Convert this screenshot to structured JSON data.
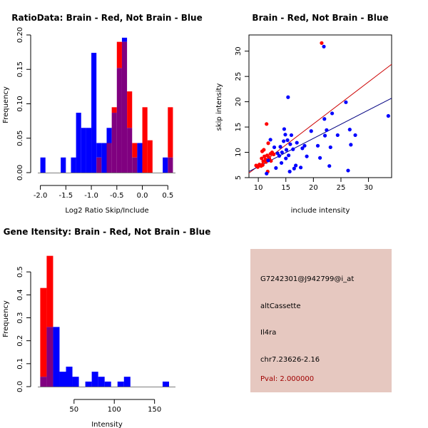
{
  "colors": {
    "red": "#ff0000",
    "blue": "#0000ff",
    "overlap": "#800080",
    "fit_red": "#cc0000",
    "fit_blue": "#000080",
    "panel_bg": "#e6c8c0",
    "pval": "#a00000"
  },
  "chart_data": [
    {
      "type": "histogram",
      "title": "RatioData: Brain - Red, Not Brain - Blue",
      "xlabel": "Log2 Ratio Skip/Include",
      "ylabel": "Frequency",
      "xlim": [
        -2.05,
        0.65
      ],
      "ylim": [
        0,
        0.2
      ],
      "xticks": [
        -2.0,
        -1.5,
        -1.0,
        -0.5,
        0.0,
        0.5
      ],
      "xtick_labels": [
        "-2.0",
        "-1.5",
        "-1.0",
        "-0.5",
        "0.0",
        "0.5"
      ],
      "yticks": [
        0,
        0.05,
        0.1,
        0.15,
        0.2
      ],
      "ytick_labels": [
        "0.00",
        "0.05",
        "0.10",
        "0.15",
        "0.20"
      ],
      "bin_width": 0.1,
      "series": [
        {
          "name": "Brain",
          "color": "red",
          "bins": [
            {
              "x0": -0.9,
              "y": 0.022
            },
            {
              "x0": -0.7,
              "y": 0.043
            },
            {
              "x0": -0.6,
              "y": 0.095
            },
            {
              "x0": -0.5,
              "y": 0.19
            },
            {
              "x0": -0.4,
              "y": 0.19
            },
            {
              "x0": -0.3,
              "y": 0.118
            },
            {
              "x0": -0.2,
              "y": 0.043
            },
            {
              "x0": 0.0,
              "y": 0.095
            },
            {
              "x0": 0.1,
              "y": 0.047
            },
            {
              "x0": 0.5,
              "y": 0.095
            }
          ]
        },
        {
          "name": "Not Brain",
          "color": "blue",
          "bins": [
            {
              "x0": -2.0,
              "y": 0.022
            },
            {
              "x0": -1.6,
              "y": 0.022
            },
            {
              "x0": -1.4,
              "y": 0.022
            },
            {
              "x0": -1.3,
              "y": 0.087
            },
            {
              "x0": -1.2,
              "y": 0.065
            },
            {
              "x0": -1.1,
              "y": 0.065
            },
            {
              "x0": -1.0,
              "y": 0.174
            },
            {
              "x0": -0.9,
              "y": 0.043
            },
            {
              "x0": -0.8,
              "y": 0.043
            },
            {
              "x0": -0.7,
              "y": 0.065
            },
            {
              "x0": -0.6,
              "y": 0.087
            },
            {
              "x0": -0.5,
              "y": 0.152
            },
            {
              "x0": -0.4,
              "y": 0.196
            },
            {
              "x0": -0.3,
              "y": 0.065
            },
            {
              "x0": -0.2,
              "y": 0.022
            },
            {
              "x0": -0.1,
              "y": 0.043
            },
            {
              "x0": 0.4,
              "y": 0.022
            },
            {
              "x0": 0.5,
              "y": 0.022
            }
          ]
        }
      ]
    },
    {
      "type": "scatter",
      "title": "Brain - Red, Not Brain - Blue",
      "xlabel": "include intensity",
      "ylabel": "skip intensity",
      "xlim": [
        8.3,
        34.2
      ],
      "ylim": [
        5,
        33.2
      ],
      "xticks": [
        10,
        15,
        20,
        25,
        30
      ],
      "yticks": [
        5,
        10,
        15,
        20,
        25,
        30
      ],
      "fit_lines": [
        {
          "name": "Brain fit",
          "color": "fit_red",
          "from": [
            8.3,
            5.9
          ],
          "to": [
            34.2,
            27.4
          ]
        },
        {
          "name": "Not Brain fit",
          "color": "fit_blue",
          "from": [
            8.3,
            6.2
          ],
          "to": [
            34.2,
            20.7
          ]
        }
      ],
      "series": [
        {
          "name": "Brain",
          "color": "red",
          "points": [
            [
              9.6,
              7.4
            ],
            [
              9.9,
              7.1
            ],
            [
              10.2,
              7.6
            ],
            [
              10.5,
              7.3
            ],
            [
              10.6,
              8.8
            ],
            [
              10.7,
              10.2
            ],
            [
              10.8,
              7.5
            ],
            [
              10.9,
              8.2
            ],
            [
              11.0,
              10.5
            ],
            [
              11.1,
              9.2
            ],
            [
              11.3,
              8.6
            ],
            [
              11.4,
              8.1
            ],
            [
              11.5,
              15.6
            ],
            [
              11.6,
              9.4
            ],
            [
              11.7,
              6.2
            ],
            [
              11.8,
              11.8
            ],
            [
              11.9,
              9.0
            ],
            [
              12.0,
              8.8
            ],
            [
              12.2,
              9.7
            ],
            [
              12.3,
              8.3
            ],
            [
              12.5,
              10.0
            ],
            [
              12.8,
              9.6
            ],
            [
              21.5,
              31.6
            ]
          ]
        },
        {
          "name": "Not Brain",
          "color": "blue",
          "points": [
            [
              11.5,
              5.8
            ],
            [
              11.8,
              8.4
            ],
            [
              12.2,
              12.5
            ],
            [
              12.9,
              11.0
            ],
            [
              13.2,
              6.9
            ],
            [
              13.5,
              9.8
            ],
            [
              13.8,
              9.3
            ],
            [
              14.0,
              11.1
            ],
            [
              14.2,
              7.9
            ],
            [
              14.3,
              10.0
            ],
            [
              14.6,
              12.2
            ],
            [
              14.7,
              14.6
            ],
            [
              14.9,
              13.5
            ],
            [
              15.0,
              8.8
            ],
            [
              15.1,
              10.5
            ],
            [
              15.3,
              12.4
            ],
            [
              15.4,
              20.9
            ],
            [
              15.5,
              9.4
            ],
            [
              15.7,
              6.2
            ],
            [
              15.8,
              11.6
            ],
            [
              16.0,
              13.4
            ],
            [
              16.3,
              10.6
            ],
            [
              16.5,
              6.8
            ],
            [
              16.8,
              7.4
            ],
            [
              17.0,
              11.9
            ],
            [
              17.7,
              7.0
            ],
            [
              18.0,
              10.8
            ],
            [
              18.4,
              11.3
            ],
            [
              18.8,
              9.2
            ],
            [
              19.6,
              14.2
            ],
            [
              20.8,
              11.3
            ],
            [
              21.2,
              8.9
            ],
            [
              21.9,
              30.9
            ],
            [
              22.0,
              16.6
            ],
            [
              22.1,
              13.3
            ],
            [
              22.4,
              14.4
            ],
            [
              22.9,
              7.3
            ],
            [
              23.1,
              11.0
            ],
            [
              23.4,
              17.7
            ],
            [
              24.4,
              13.4
            ],
            [
              25.9,
              19.9
            ],
            [
              26.3,
              6.4
            ],
            [
              26.6,
              14.5
            ],
            [
              26.8,
              11.5
            ],
            [
              27.6,
              13.4
            ],
            [
              33.6,
              17.2
            ]
          ]
        }
      ]
    },
    {
      "type": "histogram",
      "title": "Gene Itensity: Brain - Red, Not Brain - Blue",
      "xlabel": "Intensity",
      "ylabel": "Frequency",
      "xlim": [
        5,
        176
      ],
      "ylim": [
        0,
        0.6
      ],
      "xticks": [
        50,
        100,
        150
      ],
      "yticks": [
        0,
        0.1,
        0.2,
        0.3,
        0.4,
        0.5
      ],
      "ytick_labels": [
        "0.0",
        "0.1",
        "0.2",
        "0.3",
        "0.4",
        "0.5"
      ],
      "bin_width": 8,
      "series": [
        {
          "name": "Brain",
          "color": "red",
          "bins": [
            {
              "x0": 8,
              "y": 0.43
            },
            {
              "x0": 16,
              "y": 0.57
            }
          ]
        },
        {
          "name": "Not Brain",
          "color": "blue",
          "bins": [
            {
              "x0": 8,
              "y": 0.043
            },
            {
              "x0": 16,
              "y": 0.26
            },
            {
              "x0": 24,
              "y": 0.26
            },
            {
              "x0": 32,
              "y": 0.065
            },
            {
              "x0": 40,
              "y": 0.087
            },
            {
              "x0": 48,
              "y": 0.043
            },
            {
              "x0": 64,
              "y": 0.022
            },
            {
              "x0": 72,
              "y": 0.065
            },
            {
              "x0": 80,
              "y": 0.043
            },
            {
              "x0": 88,
              "y": 0.022
            },
            {
              "x0": 104,
              "y": 0.022
            },
            {
              "x0": 112,
              "y": 0.043
            },
            {
              "x0": 160,
              "y": 0.022
            }
          ]
        }
      ]
    }
  ],
  "info_panel": {
    "probe_id": "G7242301@J942799@i_at",
    "event_type": "altCassette",
    "gene": "Il4ra",
    "location": "chr7.23626-2.16",
    "pval": "Pval: 2.000000"
  }
}
